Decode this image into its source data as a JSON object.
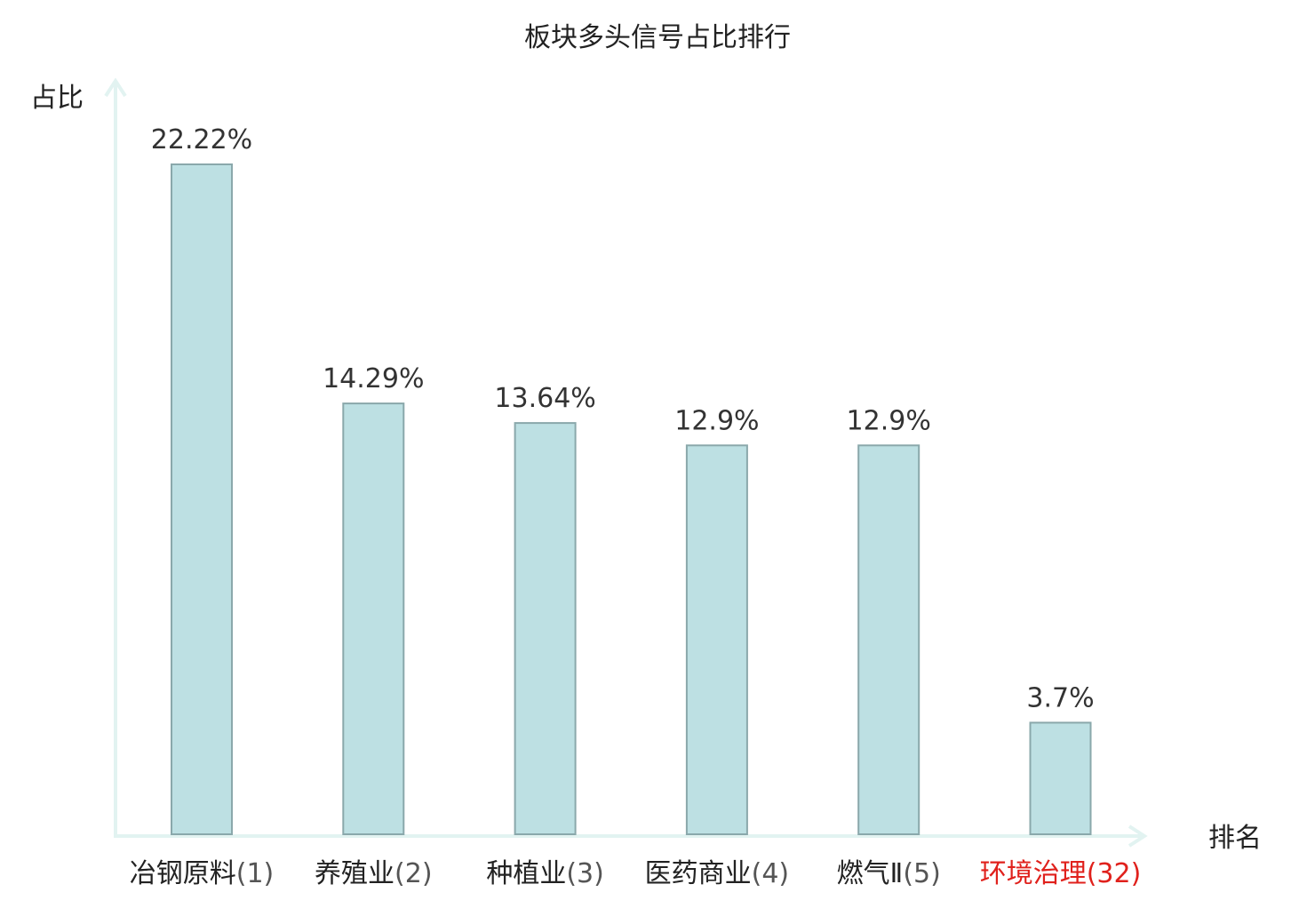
{
  "chart_data": {
    "type": "bar",
    "title": "板块多头信号占比排行",
    "xlabel": "排名",
    "ylabel": "占比",
    "categories": [
      "冶钢原料(1)",
      "养殖业(2)",
      "种植业(3)",
      "医药商业(4)",
      "燃气Ⅱ(5)",
      "环境治理(32)"
    ],
    "category_names": [
      "冶钢原料",
      "养殖业",
      "种植业",
      "医药商业",
      "燃气Ⅱ",
      "环境治理"
    ],
    "category_ranks": [
      "(1)",
      "(2)",
      "(3)",
      "(4)",
      "(5)",
      "(32)"
    ],
    "values": [
      22.22,
      14.29,
      13.64,
      12.9,
      12.9,
      3.7
    ],
    "value_labels": [
      "22.22%",
      "14.29%",
      "13.64%",
      "12.9%",
      "12.9%",
      "3.7%"
    ],
    "highlighted": [
      false,
      false,
      false,
      false,
      false,
      true
    ],
    "ylim": [
      0,
      25
    ],
    "grid": false,
    "legend": "none"
  },
  "colors": {
    "bar_fill": "#bde0e3",
    "bar_stroke": "#8aa8ab",
    "axis": "#e2f3f1",
    "text": "#222222",
    "value_text": "#333333",
    "highlight": "#e0211c",
    "rank_text": "#555555"
  }
}
